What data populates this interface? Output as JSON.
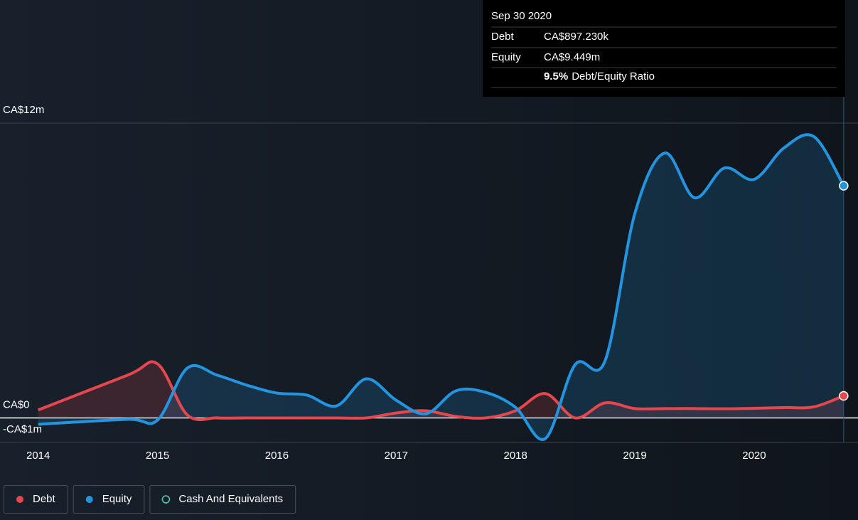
{
  "chart_data": {
    "type": "line",
    "x": [
      2014,
      2014.75,
      2015,
      2015.25,
      2015.5,
      2015.75,
      2016,
      2016.25,
      2016.5,
      2016.75,
      2017,
      2017.25,
      2017.5,
      2017.75,
      2018,
      2018.25,
      2018.5,
      2018.75,
      2019,
      2019.25,
      2019.5,
      2019.75,
      2020,
      2020.25,
      2020.5,
      2020.75
    ],
    "series": [
      {
        "name": "Debt",
        "color": "#e5474c",
        "values": [
          0.32,
          1.74,
          2.2,
          0.12,
          0.0,
          0.0,
          0.0,
          0.0,
          0.0,
          0.0,
          0.2,
          0.29,
          0.06,
          0.0,
          0.29,
          0.99,
          0.0,
          0.61,
          0.38,
          0.38,
          0.38,
          0.37,
          0.39,
          0.42,
          0.45,
          0.897
        ]
      },
      {
        "name": "Equity",
        "color": "#2394df",
        "values": [
          -0.26,
          -0.06,
          -0.09,
          2.03,
          1.74,
          1.33,
          1.01,
          0.93,
          0.49,
          1.59,
          0.72,
          0.17,
          1.1,
          1.04,
          0.43,
          -0.84,
          2.17,
          2.32,
          8.32,
          10.78,
          8.96,
          10.17,
          9.71,
          10.99,
          11.45,
          9.449
        ]
      }
    ],
    "legend": [
      {
        "name": "Debt",
        "color": "#e5474c",
        "filled": true
      },
      {
        "name": "Equity",
        "color": "#2394df",
        "filled": true
      },
      {
        "name": "Cash And Equivalents",
        "color": "#5fc9b4",
        "filled": false
      }
    ],
    "xlim": [
      2013.71,
      2020.87
    ],
    "xticks": [
      2014,
      2015,
      2016,
      2017,
      2018,
      2019,
      2020
    ],
    "ylim": [
      -1,
      12
    ],
    "yticks": [
      {
        "value": 12,
        "label": "CA$12m"
      },
      {
        "value": 0,
        "label": "CA$0"
      },
      {
        "value": -1,
        "label": "-CA$1m"
      }
    ],
    "grid": true,
    "tooltip": {
      "date": "Sep 30 2020",
      "rows": [
        {
          "label": "Debt",
          "value": "CA$897.230k",
          "color": "#e5474c"
        },
        {
          "label": "Equity",
          "value": "CA$9.449m",
          "color": "#2394df"
        }
      ],
      "ratio": "9.5%",
      "ratio_label": "Debt/Equity Ratio"
    }
  }
}
